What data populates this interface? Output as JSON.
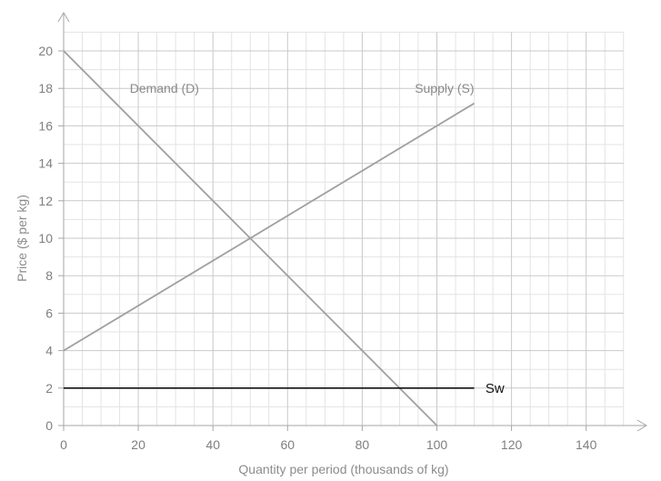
{
  "chart_data": {
    "type": "line",
    "xlabel": "Quantity per period (thousands of kg)",
    "ylabel": "Price ($ per kg)",
    "xlim": [
      0,
      150
    ],
    "ylim": [
      0,
      21
    ],
    "x_ticks": [
      "0",
      "20",
      "40",
      "60",
      "80",
      "100",
      "120",
      "140"
    ],
    "y_ticks": [
      "0",
      "2",
      "4",
      "6",
      "8",
      "10",
      "12",
      "14",
      "16",
      "18",
      "20"
    ],
    "grid": true,
    "series": [
      {
        "name": "Demand (D)",
        "color": "#a0a0a0",
        "x": [
          0,
          100
        ],
        "y": [
          20,
          0
        ],
        "label_at": [
          27,
          18
        ]
      },
      {
        "name": "Supply (S)",
        "color": "#a0a0a0",
        "x": [
          0,
          110
        ],
        "y": [
          4,
          17.2
        ],
        "label_at": [
          110,
          18
        ]
      },
      {
        "name": "Sw",
        "color": "#111111",
        "x": [
          0,
          110
        ],
        "y": [
          2,
          2
        ],
        "label_at": [
          113,
          2
        ]
      }
    ]
  }
}
